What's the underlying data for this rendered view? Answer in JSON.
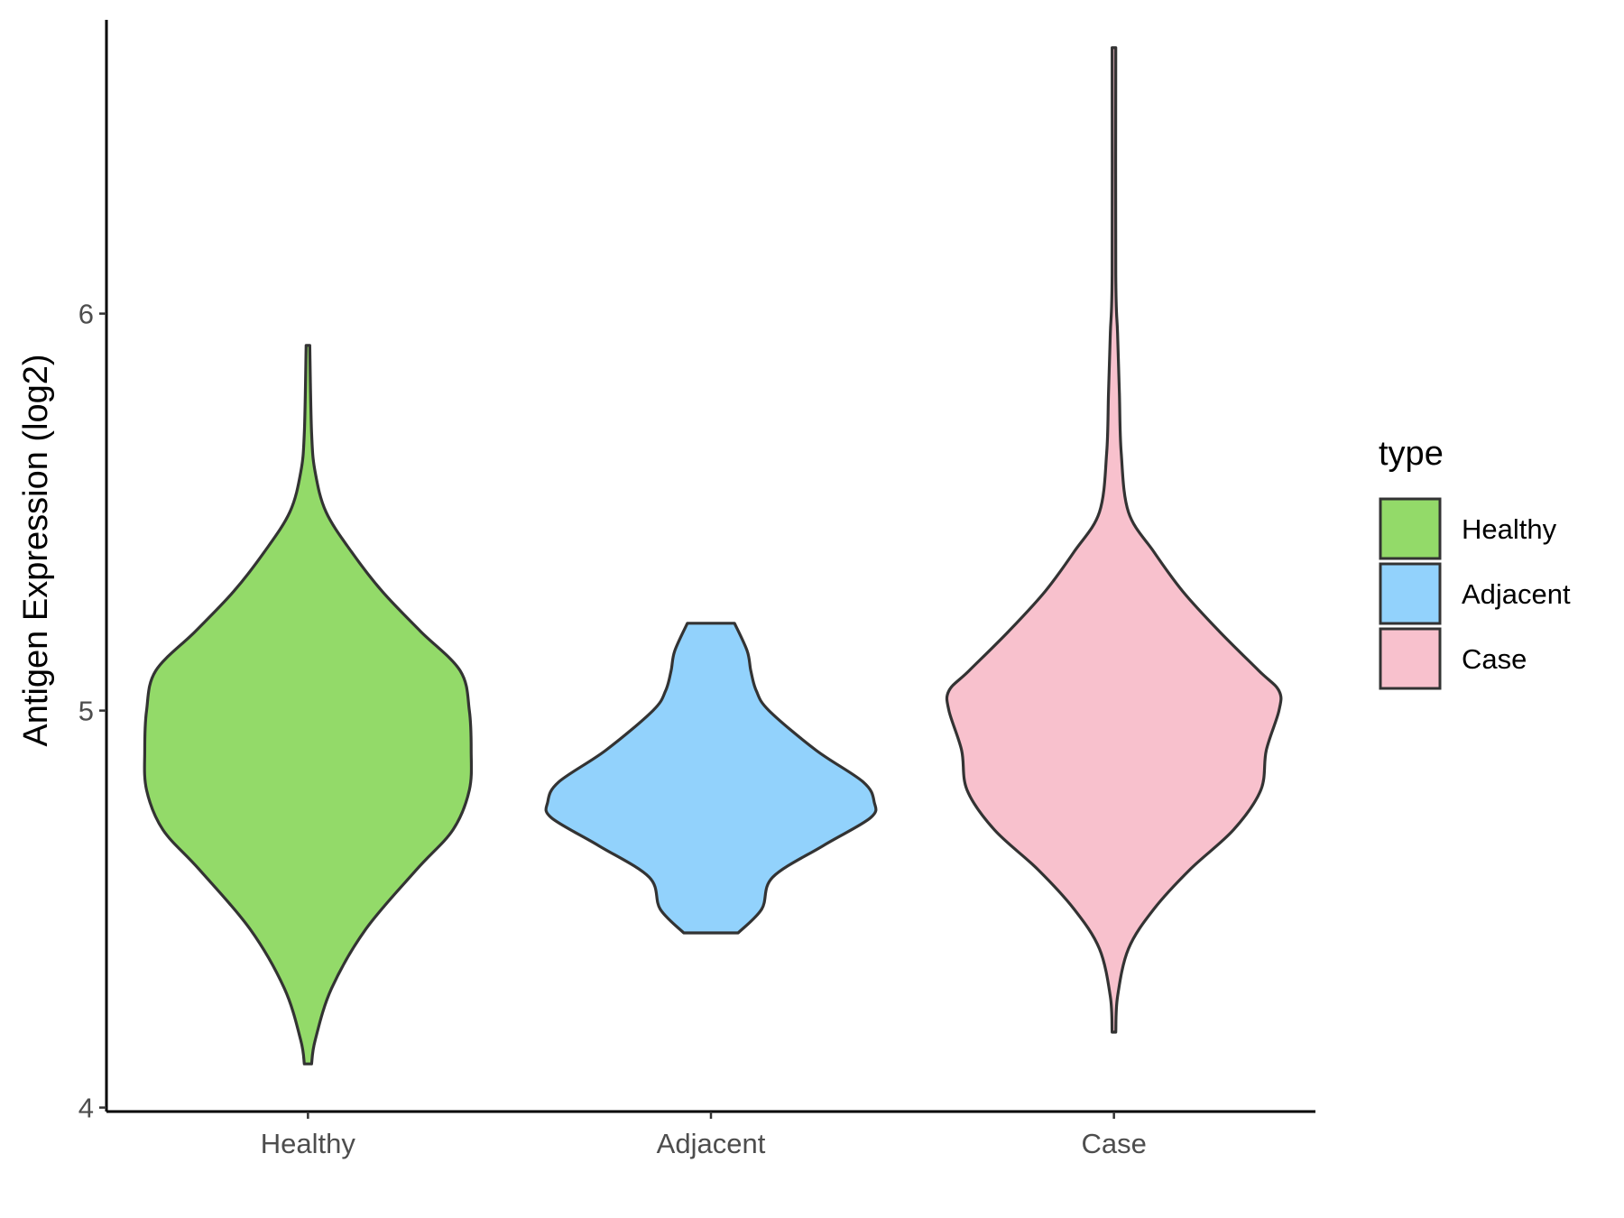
{
  "chart_data": {
    "type": "violin",
    "title": "",
    "xlabel": "",
    "ylabel": "Antigen Expression (log2)",
    "ylim": [
      3.99,
      6.74
    ],
    "yticks": [
      4,
      5,
      6
    ],
    "yticks_text": [
      "4",
      "5",
      "6"
    ],
    "grid": false,
    "legend": {
      "title": "type",
      "position": "right",
      "entries": [
        "Healthy",
        "Adjacent",
        "Case"
      ]
    },
    "categories": [
      "Healthy",
      "Adjacent",
      "Case"
    ],
    "series": [
      {
        "name": "Healthy",
        "color": "#93DA69",
        "y_min": 4.11,
        "y_max": 5.92,
        "profile": [
          [
            4.11,
            0.02
          ],
          [
            4.17,
            0.04
          ],
          [
            4.3,
            0.13
          ],
          [
            4.45,
            0.32
          ],
          [
            4.6,
            0.6
          ],
          [
            4.7,
            0.8
          ],
          [
            4.8,
            0.89
          ],
          [
            4.9,
            0.9
          ],
          [
            5.0,
            0.89
          ],
          [
            5.1,
            0.84
          ],
          [
            5.2,
            0.62
          ],
          [
            5.3,
            0.41
          ],
          [
            5.4,
            0.24
          ],
          [
            5.5,
            0.1
          ],
          [
            5.6,
            0.04
          ],
          [
            5.7,
            0.02
          ],
          [
            5.92,
            0.01
          ]
        ]
      },
      {
        "name": "Adjacent",
        "color": "#92D2FC",
        "y_min": 4.44,
        "y_max": 5.22,
        "profile": [
          [
            4.44,
            0.15
          ],
          [
            4.5,
            0.28
          ],
          [
            4.58,
            0.34
          ],
          [
            4.66,
            0.62
          ],
          [
            4.73,
            0.88
          ],
          [
            4.77,
            0.9
          ],
          [
            4.82,
            0.84
          ],
          [
            4.9,
            0.58
          ],
          [
            5.0,
            0.32
          ],
          [
            5.05,
            0.25
          ],
          [
            5.1,
            0.22
          ],
          [
            5.15,
            0.2
          ],
          [
            5.22,
            0.13
          ]
        ]
      },
      {
        "name": "Case",
        "color": "#F8C1CD",
        "y_min": 4.19,
        "y_max": 6.67,
        "profile": [
          [
            4.19,
            0.01
          ],
          [
            4.28,
            0.02
          ],
          [
            4.4,
            0.08
          ],
          [
            4.5,
            0.22
          ],
          [
            4.6,
            0.42
          ],
          [
            4.7,
            0.66
          ],
          [
            4.8,
            0.81
          ],
          [
            4.9,
            0.84
          ],
          [
            5.0,
            0.91
          ],
          [
            5.05,
            0.91
          ],
          [
            5.1,
            0.8
          ],
          [
            5.2,
            0.58
          ],
          [
            5.3,
            0.38
          ],
          [
            5.4,
            0.22
          ],
          [
            5.5,
            0.08
          ],
          [
            5.65,
            0.04
          ],
          [
            5.8,
            0.03
          ],
          [
            5.95,
            0.02
          ],
          [
            6.1,
            0.01
          ],
          [
            6.67,
            0.01
          ]
        ]
      }
    ]
  }
}
